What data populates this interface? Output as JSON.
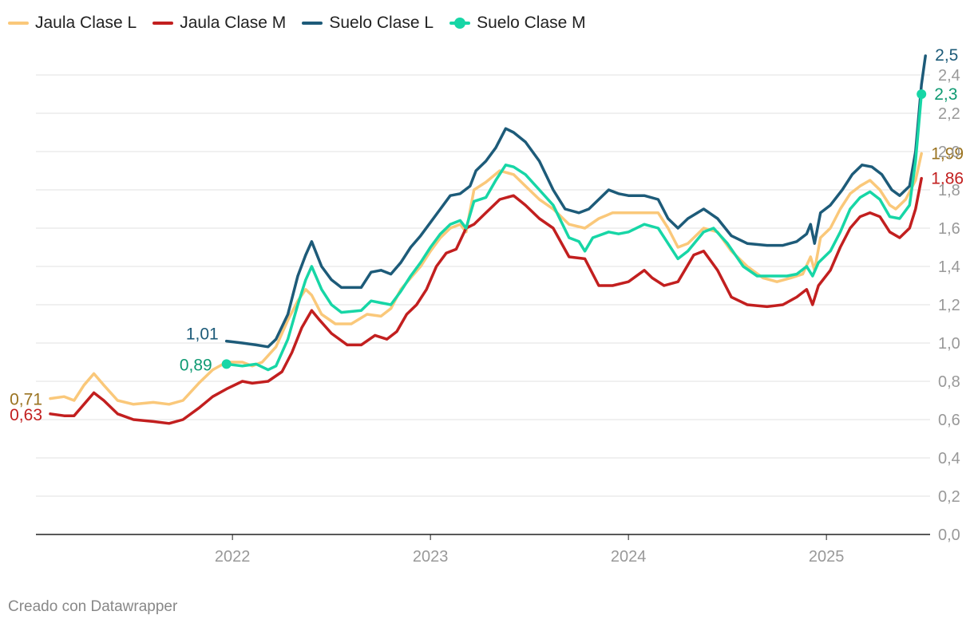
{
  "footer": "Creado con Datawrapper",
  "chart_data": {
    "type": "line",
    "x_range": [
      2021.0,
      2025.33
    ],
    "ylim": [
      0,
      2.5
    ],
    "y_ticks": [
      0.0,
      0.2,
      0.4,
      0.6,
      0.8,
      1.0,
      1.2,
      1.4,
      1.6,
      1.8,
      2.0,
      2.2,
      2.4
    ],
    "y_tick_labels": [
      "0,0",
      "0,2",
      "0,4",
      "0,6",
      "0,8",
      "1,0",
      "1,2",
      "1,4",
      "1,6",
      "1,8",
      "2,0",
      "2,2",
      "2,4"
    ],
    "x_ticks": [
      2022,
      2023,
      2024,
      2025
    ],
    "x_tick_labels": [
      "2022",
      "2023",
      "2024",
      "2025"
    ],
    "legend_position": "top-left",
    "series": [
      {
        "name": "Jaula Clase L",
        "color": "#fac87a",
        "start_label": "0,71",
        "end_label": "1,99",
        "label_color": "#9a7320",
        "points": [
          [
            2021.08,
            0.71
          ],
          [
            2021.15,
            0.72
          ],
          [
            2021.2,
            0.7
          ],
          [
            2021.25,
            0.78
          ],
          [
            2021.3,
            0.84
          ],
          [
            2021.35,
            0.78
          ],
          [
            2021.42,
            0.7
          ],
          [
            2021.5,
            0.68
          ],
          [
            2021.6,
            0.69
          ],
          [
            2021.68,
            0.68
          ],
          [
            2021.75,
            0.7
          ],
          [
            2021.83,
            0.79
          ],
          [
            2021.9,
            0.86
          ],
          [
            2021.97,
            0.9
          ],
          [
            2022.05,
            0.9
          ],
          [
            2022.1,
            0.88
          ],
          [
            2022.15,
            0.9
          ],
          [
            2022.22,
            0.98
          ],
          [
            2022.28,
            1.12
          ],
          [
            2022.33,
            1.22
          ],
          [
            2022.37,
            1.28
          ],
          [
            2022.4,
            1.25
          ],
          [
            2022.45,
            1.15
          ],
          [
            2022.52,
            1.1
          ],
          [
            2022.6,
            1.1
          ],
          [
            2022.68,
            1.15
          ],
          [
            2022.75,
            1.14
          ],
          [
            2022.8,
            1.18
          ],
          [
            2022.85,
            1.28
          ],
          [
            2022.9,
            1.34
          ],
          [
            2022.95,
            1.4
          ],
          [
            2023.0,
            1.48
          ],
          [
            2023.05,
            1.55
          ],
          [
            2023.1,
            1.6
          ],
          [
            2023.15,
            1.62
          ],
          [
            2023.18,
            1.58
          ],
          [
            2023.22,
            1.8
          ],
          [
            2023.28,
            1.84
          ],
          [
            2023.35,
            1.9
          ],
          [
            2023.42,
            1.88
          ],
          [
            2023.48,
            1.82
          ],
          [
            2023.55,
            1.75
          ],
          [
            2023.62,
            1.7
          ],
          [
            2023.7,
            1.62
          ],
          [
            2023.78,
            1.6
          ],
          [
            2023.85,
            1.65
          ],
          [
            2023.92,
            1.68
          ],
          [
            2024.0,
            1.68
          ],
          [
            2024.08,
            1.68
          ],
          [
            2024.15,
            1.68
          ],
          [
            2024.2,
            1.6
          ],
          [
            2024.25,
            1.5
          ],
          [
            2024.3,
            1.52
          ],
          [
            2024.38,
            1.6
          ],
          [
            2024.45,
            1.58
          ],
          [
            2024.52,
            1.48
          ],
          [
            2024.6,
            1.4
          ],
          [
            2024.68,
            1.34
          ],
          [
            2024.75,
            1.32
          ],
          [
            2024.82,
            1.34
          ],
          [
            2024.88,
            1.36
          ],
          [
            2024.92,
            1.45
          ],
          [
            2024.94,
            1.38
          ],
          [
            2024.97,
            1.55
          ],
          [
            2025.02,
            1.6
          ],
          [
            2025.07,
            1.7
          ],
          [
            2025.12,
            1.78
          ],
          [
            2025.17,
            1.82
          ],
          [
            2025.22,
            1.85
          ],
          [
            2025.27,
            1.8
          ],
          [
            2025.32,
            1.72
          ],
          [
            2025.35,
            1.7
          ],
          [
            2025.4,
            1.75
          ],
          [
            2025.45,
            1.85
          ],
          [
            2025.48,
            1.99
          ]
        ]
      },
      {
        "name": "Jaula Clase M",
        "color": "#c21f1f",
        "start_label": "0,63",
        "end_label": "1,86",
        "label_color": "#c21f1f",
        "points": [
          [
            2021.08,
            0.63
          ],
          [
            2021.15,
            0.62
          ],
          [
            2021.2,
            0.62
          ],
          [
            2021.25,
            0.68
          ],
          [
            2021.3,
            0.74
          ],
          [
            2021.35,
            0.7
          ],
          [
            2021.42,
            0.63
          ],
          [
            2021.5,
            0.6
          ],
          [
            2021.6,
            0.59
          ],
          [
            2021.68,
            0.58
          ],
          [
            2021.75,
            0.6
          ],
          [
            2021.83,
            0.66
          ],
          [
            2021.9,
            0.72
          ],
          [
            2021.97,
            0.76
          ],
          [
            2022.05,
            0.8
          ],
          [
            2022.1,
            0.79
          ],
          [
            2022.18,
            0.8
          ],
          [
            2022.25,
            0.85
          ],
          [
            2022.3,
            0.95
          ],
          [
            2022.35,
            1.08
          ],
          [
            2022.4,
            1.17
          ],
          [
            2022.44,
            1.12
          ],
          [
            2022.5,
            1.05
          ],
          [
            2022.58,
            0.99
          ],
          [
            2022.65,
            0.99
          ],
          [
            2022.72,
            1.04
          ],
          [
            2022.78,
            1.02
          ],
          [
            2022.83,
            1.06
          ],
          [
            2022.88,
            1.15
          ],
          [
            2022.93,
            1.2
          ],
          [
            2022.98,
            1.28
          ],
          [
            2023.03,
            1.4
          ],
          [
            2023.08,
            1.47
          ],
          [
            2023.13,
            1.49
          ],
          [
            2023.18,
            1.6
          ],
          [
            2023.22,
            1.62
          ],
          [
            2023.28,
            1.68
          ],
          [
            2023.35,
            1.75
          ],
          [
            2023.42,
            1.77
          ],
          [
            2023.48,
            1.72
          ],
          [
            2023.55,
            1.65
          ],
          [
            2023.62,
            1.6
          ],
          [
            2023.7,
            1.45
          ],
          [
            2023.78,
            1.44
          ],
          [
            2023.85,
            1.3
          ],
          [
            2023.92,
            1.3
          ],
          [
            2024.0,
            1.32
          ],
          [
            2024.08,
            1.38
          ],
          [
            2024.12,
            1.34
          ],
          [
            2024.18,
            1.3
          ],
          [
            2024.25,
            1.32
          ],
          [
            2024.33,
            1.46
          ],
          [
            2024.38,
            1.48
          ],
          [
            2024.45,
            1.38
          ],
          [
            2024.52,
            1.24
          ],
          [
            2024.6,
            1.2
          ],
          [
            2024.7,
            1.19
          ],
          [
            2024.78,
            1.2
          ],
          [
            2024.85,
            1.24
          ],
          [
            2024.9,
            1.28
          ],
          [
            2024.93,
            1.2
          ],
          [
            2024.96,
            1.3
          ],
          [
            2025.02,
            1.38
          ],
          [
            2025.07,
            1.5
          ],
          [
            2025.12,
            1.6
          ],
          [
            2025.17,
            1.66
          ],
          [
            2025.22,
            1.68
          ],
          [
            2025.27,
            1.66
          ],
          [
            2025.32,
            1.58
          ],
          [
            2025.37,
            1.55
          ],
          [
            2025.42,
            1.6
          ],
          [
            2025.45,
            1.7
          ],
          [
            2025.48,
            1.86
          ]
        ]
      },
      {
        "name": "Suelo Clase L",
        "color": "#1d5b79",
        "start_label": "1,01",
        "end_label": "2,5",
        "label_color": "#1d5b79",
        "points": [
          [
            2021.97,
            1.01
          ],
          [
            2022.05,
            1.0
          ],
          [
            2022.12,
            0.99
          ],
          [
            2022.18,
            0.98
          ],
          [
            2022.22,
            1.02
          ],
          [
            2022.28,
            1.15
          ],
          [
            2022.33,
            1.35
          ],
          [
            2022.37,
            1.46
          ],
          [
            2022.4,
            1.53
          ],
          [
            2022.45,
            1.4
          ],
          [
            2022.5,
            1.33
          ],
          [
            2022.55,
            1.29
          ],
          [
            2022.65,
            1.29
          ],
          [
            2022.7,
            1.37
          ],
          [
            2022.75,
            1.38
          ],
          [
            2022.8,
            1.36
          ],
          [
            2022.85,
            1.42
          ],
          [
            2022.9,
            1.5
          ],
          [
            2022.95,
            1.56
          ],
          [
            2023.0,
            1.63
          ],
          [
            2023.05,
            1.7
          ],
          [
            2023.1,
            1.77
          ],
          [
            2023.15,
            1.78
          ],
          [
            2023.2,
            1.82
          ],
          [
            2023.23,
            1.9
          ],
          [
            2023.28,
            1.95
          ],
          [
            2023.33,
            2.02
          ],
          [
            2023.38,
            2.12
          ],
          [
            2023.42,
            2.1
          ],
          [
            2023.48,
            2.05
          ],
          [
            2023.55,
            1.95
          ],
          [
            2023.62,
            1.8
          ],
          [
            2023.68,
            1.7
          ],
          [
            2023.75,
            1.68
          ],
          [
            2023.8,
            1.7
          ],
          [
            2023.85,
            1.75
          ],
          [
            2023.9,
            1.8
          ],
          [
            2023.95,
            1.78
          ],
          [
            2024.0,
            1.77
          ],
          [
            2024.08,
            1.77
          ],
          [
            2024.15,
            1.75
          ],
          [
            2024.2,
            1.65
          ],
          [
            2024.25,
            1.6
          ],
          [
            2024.3,
            1.65
          ],
          [
            2024.38,
            1.7
          ],
          [
            2024.45,
            1.65
          ],
          [
            2024.52,
            1.56
          ],
          [
            2024.6,
            1.52
          ],
          [
            2024.7,
            1.51
          ],
          [
            2024.78,
            1.51
          ],
          [
            2024.85,
            1.53
          ],
          [
            2024.9,
            1.57
          ],
          [
            2024.92,
            1.62
          ],
          [
            2024.94,
            1.52
          ],
          [
            2024.97,
            1.68
          ],
          [
            2025.02,
            1.72
          ],
          [
            2025.08,
            1.8
          ],
          [
            2025.13,
            1.88
          ],
          [
            2025.18,
            1.93
          ],
          [
            2025.23,
            1.92
          ],
          [
            2025.28,
            1.88
          ],
          [
            2025.33,
            1.8
          ],
          [
            2025.37,
            1.77
          ],
          [
            2025.42,
            1.82
          ],
          [
            2025.45,
            2.0
          ],
          [
            2025.48,
            2.35
          ],
          [
            2025.5,
            2.5
          ]
        ]
      },
      {
        "name": "Suelo Clase M",
        "color": "#17d6a6",
        "start_label": "0,89",
        "end_label": "2,3",
        "label_color": "#0f9a72",
        "points": [
          [
            2021.97,
            0.89
          ],
          [
            2022.05,
            0.88
          ],
          [
            2022.12,
            0.89
          ],
          [
            2022.18,
            0.86
          ],
          [
            2022.22,
            0.88
          ],
          [
            2022.28,
            1.02
          ],
          [
            2022.33,
            1.2
          ],
          [
            2022.37,
            1.33
          ],
          [
            2022.4,
            1.4
          ],
          [
            2022.45,
            1.28
          ],
          [
            2022.5,
            1.2
          ],
          [
            2022.55,
            1.16
          ],
          [
            2022.65,
            1.17
          ],
          [
            2022.7,
            1.22
          ],
          [
            2022.75,
            1.21
          ],
          [
            2022.8,
            1.2
          ],
          [
            2022.85,
            1.27
          ],
          [
            2022.9,
            1.35
          ],
          [
            2022.95,
            1.42
          ],
          [
            2023.0,
            1.5
          ],
          [
            2023.05,
            1.57
          ],
          [
            2023.1,
            1.62
          ],
          [
            2023.15,
            1.64
          ],
          [
            2023.18,
            1.6
          ],
          [
            2023.22,
            1.74
          ],
          [
            2023.28,
            1.76
          ],
          [
            2023.33,
            1.85
          ],
          [
            2023.38,
            1.93
          ],
          [
            2023.42,
            1.92
          ],
          [
            2023.48,
            1.88
          ],
          [
            2023.55,
            1.8
          ],
          [
            2023.62,
            1.72
          ],
          [
            2023.7,
            1.55
          ],
          [
            2023.75,
            1.53
          ],
          [
            2023.78,
            1.48
          ],
          [
            2023.82,
            1.55
          ],
          [
            2023.9,
            1.58
          ],
          [
            2023.95,
            1.57
          ],
          [
            2024.0,
            1.58
          ],
          [
            2024.08,
            1.62
          ],
          [
            2024.15,
            1.6
          ],
          [
            2024.2,
            1.52
          ],
          [
            2024.25,
            1.44
          ],
          [
            2024.3,
            1.48
          ],
          [
            2024.38,
            1.58
          ],
          [
            2024.43,
            1.6
          ],
          [
            2024.5,
            1.52
          ],
          [
            2024.58,
            1.4
          ],
          [
            2024.65,
            1.35
          ],
          [
            2024.72,
            1.35
          ],
          [
            2024.8,
            1.35
          ],
          [
            2024.85,
            1.36
          ],
          [
            2024.9,
            1.4
          ],
          [
            2024.93,
            1.35
          ],
          [
            2024.96,
            1.42
          ],
          [
            2025.02,
            1.48
          ],
          [
            2025.07,
            1.58
          ],
          [
            2025.12,
            1.7
          ],
          [
            2025.17,
            1.76
          ],
          [
            2025.22,
            1.79
          ],
          [
            2025.27,
            1.75
          ],
          [
            2025.32,
            1.66
          ],
          [
            2025.37,
            1.65
          ],
          [
            2025.42,
            1.72
          ],
          [
            2025.45,
            1.95
          ],
          [
            2025.48,
            2.3
          ]
        ]
      }
    ]
  }
}
